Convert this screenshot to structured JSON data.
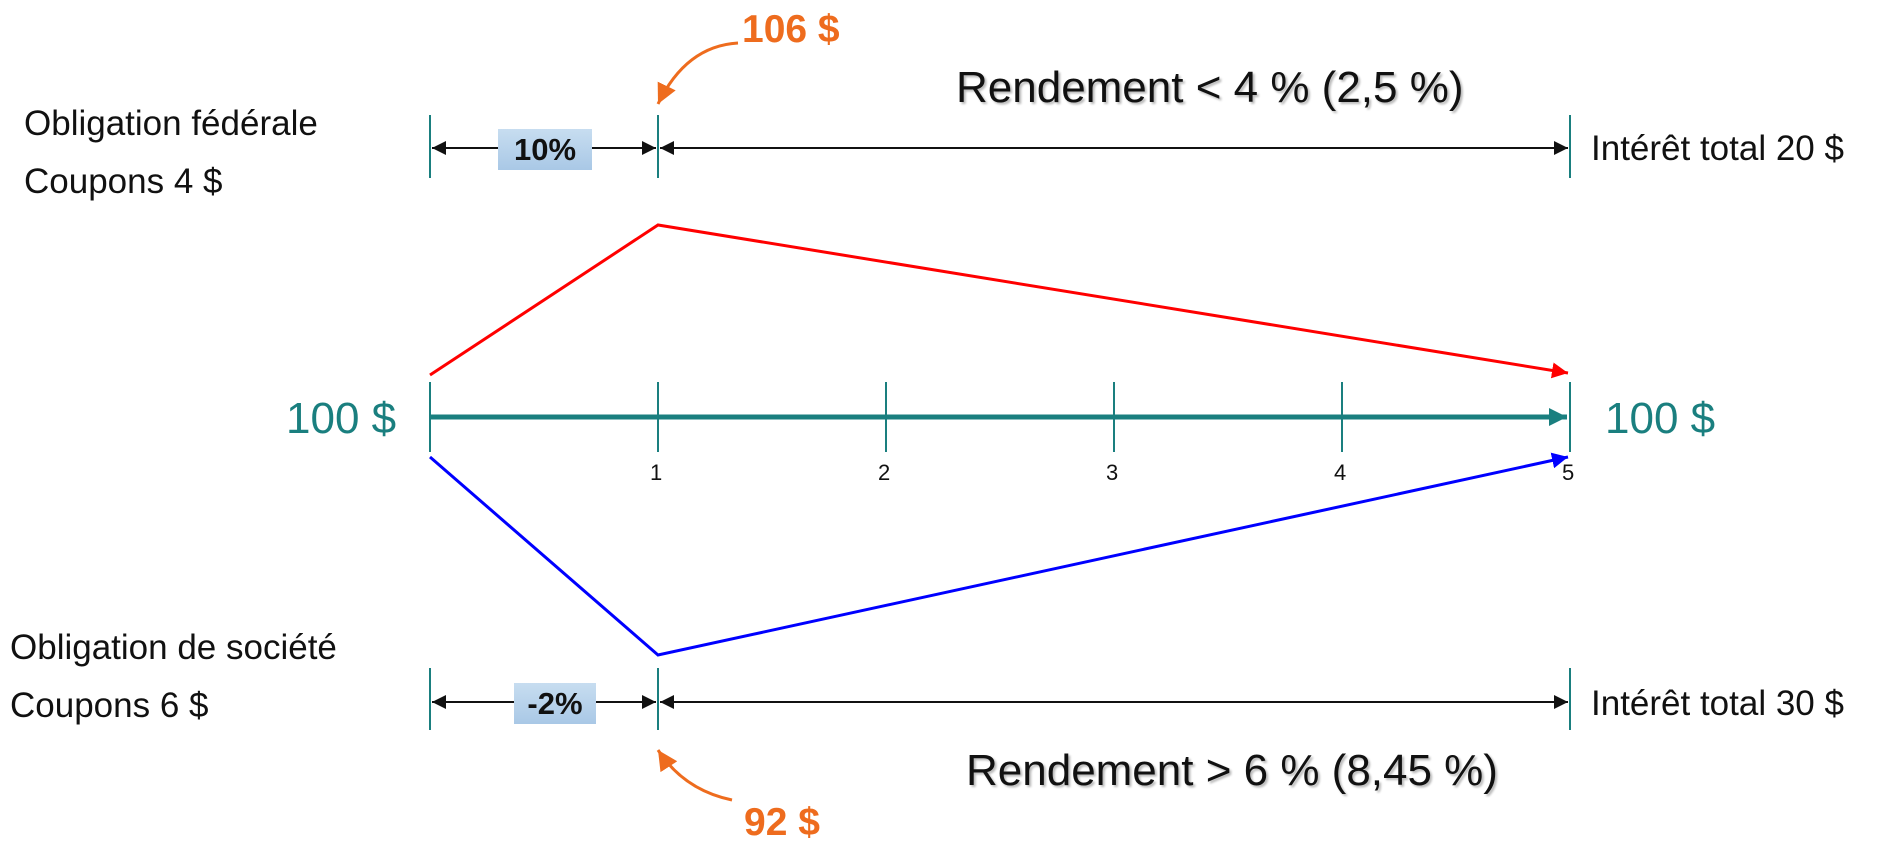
{
  "colors": {
    "timeline": "#1a7f7f",
    "federal_path": "#ff0000",
    "corporate_path": "#0000ff",
    "price_callout": "#ee6c1e",
    "dimension_line": "#111111",
    "change_box": "#b8d1ea"
  },
  "timeline": {
    "start_value": "100 $",
    "end_value": "100 $",
    "ticks": [
      "1",
      "2",
      "3",
      "4",
      "5"
    ]
  },
  "federal_bond": {
    "name": "Obligation fédérale",
    "coupon": "Coupons 4 $",
    "price_year1": "106 $",
    "change_year1": "10%",
    "yield_text": "Rendement < 4 % (2,5 %)",
    "total_interest": "Intérêt total 20 $"
  },
  "corporate_bond": {
    "name": "Obligation de société",
    "coupon": "Coupons 6 $",
    "price_year1": "92 $",
    "change_year1": "-2%",
    "yield_text": "Rendement > 6 % (8,45 %)",
    "total_interest": "Intérêt total 30 $"
  }
}
